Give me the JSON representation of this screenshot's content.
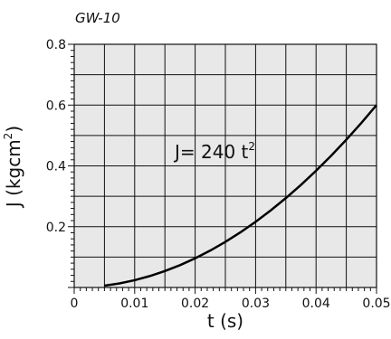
{
  "chart_data": {
    "type": "line",
    "title": "GW-10",
    "xlabel": "t (s)",
    "ylabel_main": "J (kgcm",
    "ylabel_sup": "2",
    "ylabel_end": ")",
    "xlim": [
      0,
      0.05
    ],
    "ylim": [
      0,
      0.8
    ],
    "x_ticks": [
      "0",
      "0.01",
      "0.02",
      "0.03",
      "0.04",
      "0.05"
    ],
    "y_ticks": [
      "0.2",
      "0.4",
      "0.6",
      "0.8"
    ],
    "grid": true,
    "annotation_main": "J= 240 t",
    "annotation_sup": "2",
    "series": [
      {
        "formula_coefficient": 240,
        "x": [
          0.005,
          0.0075,
          0.01,
          0.0125,
          0.015,
          0.0175,
          0.02,
          0.0225,
          0.025,
          0.0275,
          0.03,
          0.0325,
          0.035,
          0.0375,
          0.04,
          0.0425,
          0.045,
          0.0475,
          0.05
        ],
        "y": [
          0.006,
          0.0135,
          0.024,
          0.0375,
          0.054,
          0.0735,
          0.096,
          0.1215,
          0.15,
          0.1815,
          0.216,
          0.2535,
          0.294,
          0.3375,
          0.384,
          0.4335,
          0.486,
          0.5415,
          0.6
        ]
      }
    ],
    "colors": {
      "plot_background": "#e8e8e8",
      "grid": "#111111",
      "line": "#000000"
    }
  }
}
